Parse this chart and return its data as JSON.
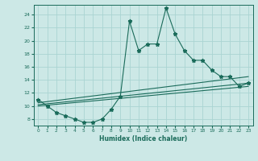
{
  "xlabel": "Humidex (Indice chaleur)",
  "bg_color": "#cce8e6",
  "grid_color": "#aad4d2",
  "line_color": "#1a6b5a",
  "xlim": [
    -0.5,
    23.5
  ],
  "ylim": [
    7,
    25.5
  ],
  "xticks": [
    0,
    1,
    2,
    3,
    4,
    5,
    6,
    7,
    8,
    9,
    10,
    11,
    12,
    13,
    14,
    15,
    16,
    17,
    18,
    19,
    20,
    21,
    22,
    23
  ],
  "yticks": [
    8,
    10,
    12,
    14,
    16,
    18,
    20,
    22,
    24
  ],
  "main_x": [
    0,
    1,
    2,
    3,
    4,
    5,
    6,
    7,
    8,
    9,
    10,
    11,
    12,
    13,
    14,
    15,
    16,
    17,
    18,
    19,
    20,
    21,
    22,
    23
  ],
  "main_y": [
    11,
    10,
    9,
    8.5,
    8,
    7.5,
    7.5,
    8,
    9.5,
    11.5,
    23,
    18.5,
    19.5,
    19.5,
    25,
    21,
    18.5,
    17,
    17,
    15.5,
    14.5,
    14.5,
    13,
    13.5
  ],
  "line1_x": [
    0,
    23
  ],
  "line1_y": [
    10.5,
    14.5
  ],
  "line2_x": [
    0,
    23
  ],
  "line2_y": [
    10.2,
    13.5
  ],
  "line3_x": [
    0,
    23
  ],
  "line3_y": [
    10.0,
    13.0
  ]
}
